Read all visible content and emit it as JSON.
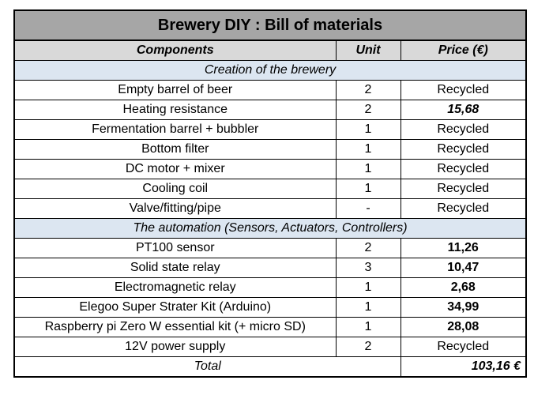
{
  "title": "Brewery DIY : Bill of materials",
  "headers": {
    "components": "Components",
    "unit": "Unit",
    "price": "Price (€)"
  },
  "sections": [
    {
      "title": "Creation of the brewery",
      "rows": [
        {
          "component": "Empty barrel of beer",
          "unit": "2",
          "price": "Recycled",
          "style": "plain"
        },
        {
          "component": "Heating resistance",
          "unit": "2",
          "price": "15,68",
          "style": "bolditalic"
        },
        {
          "component": "Fermentation barrel + bubbler",
          "unit": "1",
          "price": "Recycled",
          "style": "plain"
        },
        {
          "component": "Bottom filter",
          "unit": "1",
          "price": "Recycled",
          "style": "plain"
        },
        {
          "component": "DC motor + mixer",
          "unit": "1",
          "price": "Recycled",
          "style": "plain"
        },
        {
          "component": "Cooling coil",
          "unit": "1",
          "price": "Recycled",
          "style": "plain"
        },
        {
          "component": "Valve/fitting/pipe",
          "unit": "-",
          "price": "Recycled",
          "style": "plain"
        }
      ]
    },
    {
      "title": "The automation (Sensors, Actuators, Controllers)",
      "rows": [
        {
          "component": "PT100 sensor",
          "unit": "2",
          "price": "11,26",
          "style": "bold"
        },
        {
          "component": "Solid state relay",
          "unit": "3",
          "price": "10,47",
          "style": "bold"
        },
        {
          "component": "Electromagnetic relay",
          "unit": "1",
          "price": "2,68",
          "style": "bold"
        },
        {
          "component": "Elegoo Super Strater Kit (Arduino)",
          "unit": "1",
          "price": "34,99",
          "style": "bold"
        },
        {
          "component": "Raspberry pi Zero W essential kit (+ micro SD)",
          "unit": "1",
          "price": "28,08",
          "style": "bold"
        },
        {
          "component": "12V power supply",
          "unit": "2",
          "price": "Recycled",
          "style": "plain"
        }
      ]
    }
  ],
  "total": {
    "label": "Total",
    "amount": "103,16 €"
  }
}
